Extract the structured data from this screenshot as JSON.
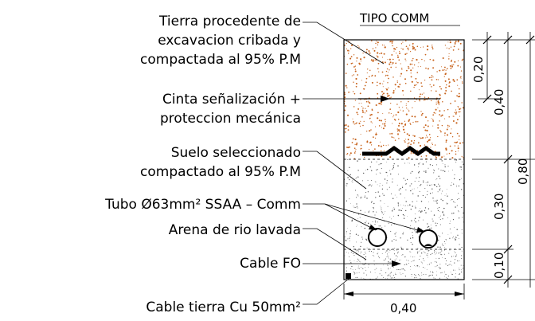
{
  "title": "TIPO COMM",
  "labels": {
    "tierra_1": "Tierra procedente de",
    "tierra_2": "excavacion cribada y",
    "tierra_3": "compactada al 95% P.M",
    "cinta_1": "Cinta señalización +",
    "cinta_2": "proteccion mecánica",
    "suelo_1": "Suelo seleccionado",
    "suelo_2": "compactado al 95% P.M",
    "tubo": "Tubo Ø63mm² SSAA – Comm",
    "arena": "Arena de rio lavada",
    "cable_fo": "Cable FO",
    "cable_tierra": "Cable tierra Cu 50mm²"
  },
  "dimensions": {
    "d020": "0,20",
    "d040": "0,40",
    "d030": "0,30",
    "d010": "0,10",
    "d080": "0,80",
    "width": "0,40"
  },
  "colors": {
    "topsoil_dots": "#c8641e",
    "line": "#000000"
  }
}
